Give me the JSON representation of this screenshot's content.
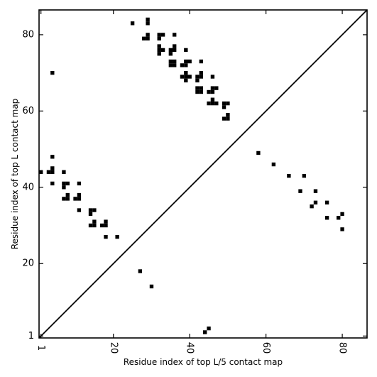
{
  "chart_data": {
    "type": "scatter",
    "title": "",
    "xlabel": "Residue index of top L/5 contact map",
    "ylabel": "Residue index of top L contact map",
    "xlim": [
      0.5,
      86.5
    ],
    "ylim": [
      0.5,
      86.5
    ],
    "xticks": [
      1,
      20,
      40,
      60,
      80
    ],
    "yticks": [
      1,
      20,
      40,
      60,
      80
    ],
    "grid": false,
    "diagonal": true,
    "marker_color": "#000000",
    "series": [
      {
        "points": [
          [
            25,
            83
          ],
          [
            29,
            84
          ],
          [
            29,
            83
          ],
          [
            28,
            79
          ],
          [
            29,
            79
          ],
          [
            29,
            80
          ],
          [
            32,
            79
          ],
          [
            32,
            80
          ],
          [
            33,
            80
          ],
          [
            32,
            77
          ],
          [
            32,
            76
          ],
          [
            32,
            75
          ],
          [
            33,
            76
          ],
          [
            35,
            75
          ],
          [
            35,
            76
          ],
          [
            36,
            76
          ],
          [
            36,
            77
          ],
          [
            36,
            80
          ],
          [
            35,
            73
          ],
          [
            35,
            72
          ],
          [
            36,
            72
          ],
          [
            36,
            73
          ],
          [
            38,
            72
          ],
          [
            39,
            72
          ],
          [
            39,
            73
          ],
          [
            40,
            73
          ],
          [
            39,
            76
          ],
          [
            38,
            69
          ],
          [
            39,
            69
          ],
          [
            39,
            70
          ],
          [
            40,
            69
          ],
          [
            39,
            68
          ],
          [
            42,
            68
          ],
          [
            42,
            69
          ],
          [
            43,
            69
          ],
          [
            43,
            70
          ],
          [
            43,
            73
          ],
          [
            42,
            66
          ],
          [
            42,
            65
          ],
          [
            43,
            65
          ],
          [
            43,
            66
          ],
          [
            45,
            65
          ],
          [
            46,
            65
          ],
          [
            46,
            66
          ],
          [
            47,
            66
          ],
          [
            46,
            69
          ],
          [
            45,
            62
          ],
          [
            46,
            62
          ],
          [
            46,
            63
          ],
          [
            47,
            62
          ],
          [
            49,
            61
          ],
          [
            49,
            62
          ],
          [
            50,
            62
          ],
          [
            50,
            59
          ],
          [
            49,
            58
          ],
          [
            50,
            58
          ],
          [
            1,
            44
          ],
          [
            3,
            44
          ],
          [
            4,
            44
          ],
          [
            4,
            45
          ],
          [
            4,
            48
          ],
          [
            4,
            41
          ],
          [
            4,
            70
          ],
          [
            7,
            44
          ],
          [
            7,
            41
          ],
          [
            7,
            40
          ],
          [
            8,
            41
          ],
          [
            7,
            37
          ],
          [
            8,
            37
          ],
          [
            8,
            38
          ],
          [
            10,
            37
          ],
          [
            11,
            37
          ],
          [
            11,
            38
          ],
          [
            11,
            41
          ],
          [
            11,
            34
          ],
          [
            14,
            34
          ],
          [
            14,
            33
          ],
          [
            15,
            34
          ],
          [
            14,
            30
          ],
          [
            15,
            30
          ],
          [
            15,
            31
          ],
          [
            17,
            30
          ],
          [
            18,
            30
          ],
          [
            18,
            31
          ],
          [
            18,
            27
          ],
          [
            21,
            27
          ],
          [
            27,
            18
          ],
          [
            30,
            14
          ],
          [
            44,
            2
          ],
          [
            45,
            3
          ],
          [
            58,
            49
          ],
          [
            62,
            46
          ],
          [
            66,
            43
          ],
          [
            69,
            39
          ],
          [
            70,
            43
          ],
          [
            72,
            35
          ],
          [
            73,
            36
          ],
          [
            73,
            39
          ],
          [
            76,
            32
          ],
          [
            76,
            36
          ],
          [
            79,
            32
          ],
          [
            80,
            33
          ],
          [
            80,
            29
          ]
        ]
      }
    ]
  }
}
